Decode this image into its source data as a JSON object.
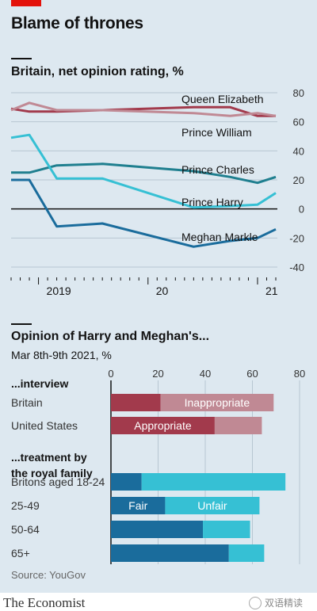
{
  "headline": "Blame of thrones",
  "chart_data": [
    {
      "type": "line",
      "title": "Britain, net opinion rating, %",
      "ylim": [
        -40,
        80
      ],
      "yticks": [
        80,
        60,
        40,
        20,
        0,
        -20,
        -40
      ],
      "xticks": [
        "2019",
        "20",
        "21"
      ],
      "x": [
        "2018-10",
        "2018-12",
        "2019-03",
        "2019-08",
        "2020-06",
        "2020-10",
        "2021-01",
        "2021-03"
      ],
      "series": [
        {
          "name": "Queen Elizabeth",
          "color": "#a23a4c",
          "values": [
            69,
            67,
            67,
            68,
            70,
            70,
            64,
            64
          ]
        },
        {
          "name": "Prince William",
          "color": "#c08994",
          "values": [
            68,
            73,
            68,
            68,
            66,
            64,
            66,
            64
          ]
        },
        {
          "name": "Prince Charles",
          "color": "#1f7f8f",
          "values": [
            25,
            25,
            30,
            31,
            26,
            22,
            18,
            22
          ]
        },
        {
          "name": "Prince Harry",
          "color": "#36c0d4",
          "values": [
            49,
            51,
            21,
            21,
            1,
            2,
            3,
            11
          ]
        },
        {
          "name": "Meghan Markle",
          "color": "#1a6c9c",
          "values": [
            20,
            20,
            -12,
            -10,
            -26,
            -22,
            -20,
            -14
          ]
        }
      ]
    },
    {
      "type": "bar",
      "title": "Opinion of Harry and Meghan's...",
      "subtitle": "Mar 8th-9th 2021, %",
      "xlim": [
        0,
        80
      ],
      "xticks": [
        0,
        20,
        40,
        60,
        80
      ],
      "groups": [
        {
          "label": "...interview",
          "rows": [
            {
              "label": "Britain",
              "values": [
                21,
                48
              ],
              "segment_labels": [
                "",
                "Inappropriate"
              ],
              "colors": [
                "#a23a4c",
                "#c08994"
              ]
            },
            {
              "label": "United States",
              "values": [
                44,
                20
              ],
              "segment_labels": [
                "Appropriate",
                ""
              ],
              "colors": [
                "#a23a4c",
                "#c08994"
              ]
            }
          ]
        },
        {
          "label": "...treatment by the royal family",
          "rows": [
            {
              "label": "Britons aged 18-24",
              "values": [
                13,
                61
              ],
              "segment_labels": [
                "",
                ""
              ],
              "colors": [
                "#1a6c9c",
                "#36c0d4"
              ]
            },
            {
              "label": "25-49",
              "values": [
                23,
                40
              ],
              "segment_labels": [
                "Fair",
                "Unfair"
              ],
              "colors": [
                "#1a6c9c",
                "#36c0d4"
              ]
            },
            {
              "label": "50-64",
              "values": [
                39,
                20
              ],
              "segment_labels": [
                "",
                ""
              ],
              "colors": [
                "#1a6c9c",
                "#36c0d4"
              ]
            },
            {
              "label": "65+",
              "values": [
                50,
                15
              ],
              "segment_labels": [
                "",
                ""
              ],
              "colors": [
                "#1a6c9c",
                "#36c0d4"
              ]
            }
          ]
        }
      ]
    }
  ],
  "source": "Source: YouGov",
  "brand": "The Economist",
  "watermark": "双语精读"
}
